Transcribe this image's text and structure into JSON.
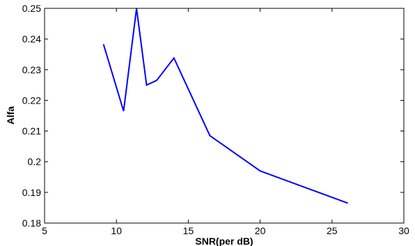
{
  "chart_data": {
    "type": "line",
    "title": "",
    "xlabel": "SNR(per dB)",
    "ylabel": "Alfa",
    "xlim": [
      5,
      30
    ],
    "ylim": [
      0.18,
      0.25
    ],
    "xticks": [
      "5",
      "10",
      "15",
      "20",
      "25",
      "30"
    ],
    "yticks": [
      "0.18",
      "0.19",
      "0.2",
      "0.21",
      "0.22",
      "0.23",
      "0.24",
      "0.25"
    ],
    "grid": false,
    "series": [
      {
        "color": "#0000ff",
        "x": [
          9.1,
          10.5,
          11.4,
          12.1,
          12.8,
          14.0,
          16.5,
          20.0,
          26.1
        ],
        "y": [
          0.2383,
          0.2165,
          0.25,
          0.225,
          0.2265,
          0.2338,
          0.2085,
          0.197,
          0.1865
        ]
      }
    ]
  }
}
